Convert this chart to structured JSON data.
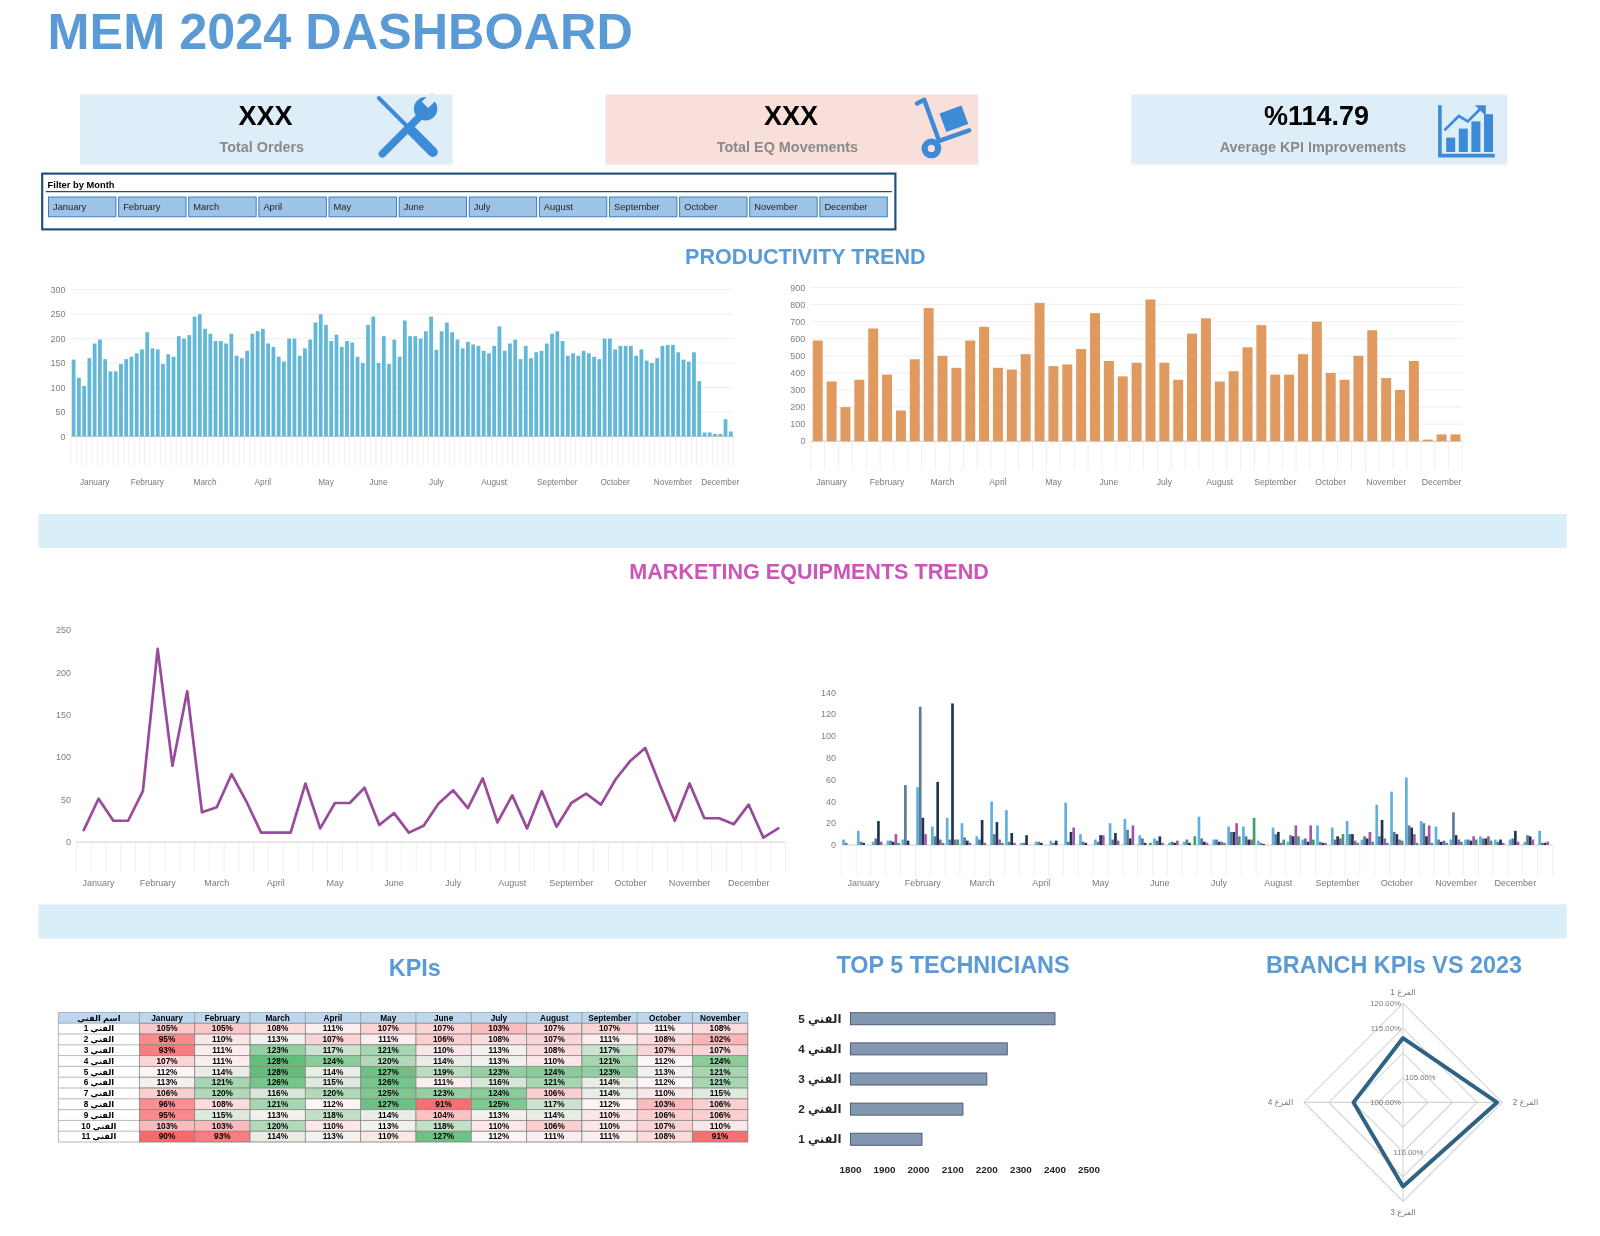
{
  "chart_data": [
    {
      "type": "other",
      "title": "MEM 2024 DASHBOARD",
      "annotations": [
        "XXX",
        "Total Orders",
        "XXX",
        "Total EQ Movements",
        "%114.79",
        "Average KPI Improvements",
        "Filter by Month",
        "January",
        "February",
        "March",
        "April",
        "May",
        "June",
        "July",
        "August",
        "September",
        "October",
        "November",
        "December"
      ]
    },
    {
      "type": "bar",
      "title": "PRODUCTIVITY TREND",
      "categories": [
        null,
        null,
        null,
        null,
        "January",
        null,
        null,
        null,
        null,
        null,
        null,
        null,
        null,
        null,
        "February",
        null,
        null,
        null,
        null,
        null,
        null,
        null,
        null,
        null,
        null,
        "March",
        null,
        null,
        null,
        null,
        null,
        null,
        null,
        null,
        null,
        null,
        "April",
        null,
        null,
        null,
        null,
        null,
        null,
        null,
        null,
        null,
        null,
        null,
        "May",
        null,
        null,
        null,
        null,
        null,
        null,
        null,
        null,
        null,
        "June",
        null,
        null,
        null,
        null,
        null,
        null,
        null,
        null,
        null,
        null,
        "July",
        null,
        null,
        null,
        null,
        null,
        null,
        null,
        null,
        null,
        null,
        "August",
        null,
        null,
        null,
        null,
        null,
        null,
        null,
        null,
        null,
        null,
        null,
        "September",
        null,
        null,
        null,
        null,
        null,
        null,
        null,
        null,
        null,
        null,
        "October",
        null,
        null,
        null,
        null,
        null,
        null,
        null,
        null,
        null,
        null,
        "November",
        null,
        null,
        null,
        null,
        null,
        null,
        null,
        null,
        "December",
        null,
        null
      ],
      "values": [
        157,
        120,
        103,
        160,
        190,
        198,
        158,
        133,
        133,
        148,
        158,
        163,
        170,
        178,
        213,
        180,
        178,
        148,
        168,
        163,
        205,
        200,
        207,
        245,
        250,
        220,
        210,
        195,
        195,
        190,
        210,
        165,
        160,
        175,
        210,
        215,
        220,
        190,
        183,
        163,
        153,
        200,
        200,
        165,
        180,
        198,
        233,
        250,
        228,
        195,
        208,
        183,
        195,
        192,
        163,
        150,
        228,
        245,
        150,
        205,
        148,
        198,
        163,
        237,
        205,
        205,
        200,
        215,
        245,
        177,
        215,
        233,
        213,
        198,
        180,
        193,
        188,
        185,
        175,
        170,
        185,
        225,
        175,
        190,
        198,
        158,
        185,
        160,
        172,
        175,
        190,
        210,
        215,
        195,
        165,
        170,
        165,
        175,
        170,
        163,
        158,
        200,
        200,
        178,
        185,
        185,
        185,
        165,
        178,
        155,
        150,
        160,
        185,
        187,
        187,
        172,
        157,
        153,
        172,
        113,
        8,
        8,
        5,
        5,
        35,
        10
      ],
      "color": "#62b8d6",
      "ylim": [
        0,
        300
      ],
      "yticks": [
        0,
        50,
        100,
        150,
        200,
        250,
        300
      ],
      "grid": "y"
    },
    {
      "type": "bar",
      "categories": [
        null,
        "January",
        null,
        null,
        null,
        "February",
        null,
        null,
        null,
        "March",
        null,
        null,
        null,
        "April",
        null,
        null,
        null,
        "May",
        null,
        null,
        null,
        "June",
        null,
        null,
        null,
        "July",
        null,
        null,
        null,
        "August",
        null,
        null,
        null,
        "September",
        null,
        null,
        null,
        "October",
        null,
        null,
        null,
        "November",
        null,
        null,
        null,
        "December",
        null
      ],
      "values": [
        590,
        350,
        200,
        360,
        660,
        390,
        180,
        480,
        780,
        500,
        430,
        590,
        670,
        430,
        420,
        510,
        810,
        440,
        450,
        540,
        750,
        470,
        380,
        460,
        830,
        460,
        360,
        630,
        720,
        350,
        410,
        550,
        680,
        390,
        390,
        510,
        700,
        400,
        360,
        500,
        650,
        370,
        300,
        470,
        10,
        40,
        40
      ],
      "color": "#e09a60",
      "ylim": [
        0,
        900
      ],
      "yticks": [
        0,
        100,
        200,
        300,
        400,
        500,
        600,
        700,
        800,
        900
      ],
      "grid": "y"
    },
    {
      "type": "line",
      "title": "MARKETING EQUIPMENTS TREND",
      "categories": [
        null,
        "January",
        null,
        null,
        null,
        "February",
        null,
        null,
        null,
        "March",
        null,
        null,
        null,
        "April",
        null,
        null,
        null,
        "May",
        null,
        null,
        null,
        "June",
        null,
        null,
        null,
        "July",
        null,
        null,
        null,
        "August",
        null,
        null,
        null,
        "September",
        null,
        null,
        null,
        "October",
        null,
        null,
        null,
        "November",
        null,
        null,
        null,
        "December",
        null,
        null
      ],
      "values": [
        14,
        51,
        25,
        25,
        60,
        228,
        90,
        178,
        35,
        41,
        80,
        48,
        11,
        11,
        11,
        69,
        16,
        46,
        46,
        64,
        20,
        34,
        11,
        19,
        45,
        61,
        40,
        75,
        23,
        55,
        16,
        60,
        18,
        46,
        57,
        44,
        74,
        96,
        111,
        67,
        25,
        69,
        28,
        28,
        21,
        44,
        5,
        16
      ],
      "color": "#9a4a9a",
      "ylim": [
        0,
        250
      ],
      "yticks": [
        0,
        50,
        100,
        150,
        200,
        250
      ]
    },
    {
      "type": "bar",
      "categories": [
        null,
        "January",
        null,
        null,
        null,
        "February",
        null,
        null,
        null,
        "March",
        null,
        null,
        null,
        "April",
        null,
        null,
        null,
        "May",
        null,
        null,
        null,
        "June",
        null,
        null,
        null,
        "July",
        null,
        null,
        null,
        "August",
        null,
        null,
        null,
        "September",
        null,
        null,
        null,
        "October",
        null,
        null,
        null,
        "November",
        null,
        null,
        null,
        "December",
        null,
        null
      ],
      "series": [
        {
          "color": "#5fb0dd",
          "values": [
            5,
            13,
            3,
            4,
            5,
            53,
            17,
            25,
            20,
            8,
            40,
            32,
            2,
            3,
            4,
            39,
            10,
            5,
            20,
            24,
            9,
            6,
            2,
            3,
            26,
            5,
            17,
            17,
            4,
            16,
            3,
            5,
            18,
            16,
            22,
            5,
            37,
            49,
            62,
            22,
            17,
            5,
            5,
            8,
            5,
            5,
            3,
            13
          ]
        },
        {
          "color": "#5b7a96",
          "values": [
            2,
            3,
            6,
            4,
            55,
            127,
            8,
            5,
            7,
            5,
            10,
            3,
            2,
            3,
            2,
            3,
            3,
            3,
            5,
            14,
            6,
            4,
            3,
            5,
            6,
            5,
            12,
            8,
            2,
            10,
            9,
            6,
            3,
            5,
            10,
            8,
            8,
            12,
            18,
            20,
            5,
            30,
            5,
            6,
            3,
            6,
            9,
            2
          ]
        },
        {
          "color": "#1e3553",
          "values": [
            null,
            2,
            22,
            3,
            4,
            25,
            58,
            130,
            4,
            23,
            21,
            11,
            9,
            2,
            4,
            12,
            2,
            9,
            11,
            6,
            2,
            8,
            2,
            2,
            3,
            3,
            12,
            5,
            1,
            12,
            8,
            3,
            2,
            8,
            10,
            6,
            23,
            10,
            16,
            8,
            3,
            9,
            4,
            6,
            5,
            13,
            8,
            2
          ]
        },
        {
          "color": "#9c5ba8",
          "values": [
            null,
            null,
            3,
            10,
            null,
            10,
            5,
            5,
            2,
            2,
            5,
            2,
            null,
            null,
            null,
            16,
            null,
            9,
            4,
            18,
            null,
            2,
            4,
            null,
            2,
            3,
            20,
            5,
            null,
            2,
            18,
            18,
            2,
            6,
            4,
            12,
            6,
            5,
            10,
            18,
            4,
            5,
            8,
            8,
            2,
            3,
            5,
            3
          ]
        },
        {
          "color": "#3f9f6a",
          "values": [
            null,
            null,
            null,
            2,
            null,
            null,
            2,
            5,
            null,
            null,
            2,
            null,
            null,
            null,
            null,
            null,
            null,
            null,
            null,
            null,
            2,
            null,
            null,
            8,
            null,
            2,
            8,
            25,
            null,
            5,
            8,
            5,
            null,
            10,
            2,
            3,
            2,
            4,
            2,
            2,
            2,
            3,
            5,
            4,
            null,
            null,
            null,
            null
          ]
        }
      ],
      "ylim": [
        0,
        140
      ],
      "yticks": [
        0,
        20,
        40,
        60,
        80,
        100,
        120,
        140
      ]
    },
    {
      "type": "heatmap",
      "title": "KPIs",
      "ylabel": "اسم الفني",
      "categories": [
        "January",
        "February",
        "March",
        "April",
        "May",
        "June",
        "July",
        "August",
        "September",
        "October",
        "November"
      ],
      "y_categories": [
        "الفني 1",
        "الفني 2",
        "الفني 3",
        "الفني 4",
        "الفني 5",
        "الفني 6",
        "الفني 7",
        "الفني 8",
        "الفني 9",
        "الفني 10",
        "الفني 11"
      ],
      "cells": [
        [
          105,
          105,
          108,
          111,
          107,
          107,
          103,
          107,
          107,
          111,
          108
        ],
        [
          95,
          110,
          113,
          107,
          111,
          106,
          108,
          107,
          111,
          108,
          102
        ],
        [
          93,
          111,
          123,
          117,
          121,
          110,
          113,
          108,
          117,
          107,
          107
        ],
        [
          107,
          111,
          128,
          124,
          120,
          114,
          113,
          110,
          121,
          112,
          124
        ],
        [
          112,
          114,
          128,
          114,
          127,
          119,
          123,
          124,
          123,
          113,
          121
        ],
        [
          113,
          121,
          126,
          115,
          126,
          111,
          116,
          121,
          114,
          112,
          121
        ],
        [
          106,
          120,
          116,
          120,
          125,
          123,
          124,
          106,
          114,
          110,
          115
        ],
        [
          96,
          108,
          121,
          112,
          127,
          91,
          125,
          117,
          112,
          103,
          106
        ],
        [
          95,
          115,
          113,
          118,
          114,
          104,
          113,
          114,
          110,
          106,
          106
        ],
        [
          103,
          103,
          120,
          110,
          113,
          118,
          110,
          106,
          110,
          107,
          110
        ],
        [
          90,
          93,
          114,
          113,
          110,
          127,
          112,
          111,
          111,
          108,
          91
        ]
      ],
      "cell_labels": [
        [
          "105%",
          "105%",
          "108%",
          "111%",
          "107%",
          "107%",
          "103%",
          "107%",
          "107%",
          "111%",
          "108%"
        ],
        [
          "95%",
          "110%",
          "113%",
          "107%",
          "111%",
          "106%",
          "108%",
          "107%",
          "111%",
          "108%",
          "102%"
        ],
        [
          "93%",
          "111%",
          "123%",
          "117%",
          "121%",
          "110%",
          "113%",
          "108%",
          "117%",
          "107%",
          "107%"
        ],
        [
          "107%",
          "111%",
          "128%",
          "124%",
          "120%",
          "114%",
          "113%",
          "110%",
          "121%",
          "112%",
          "124%"
        ],
        [
          "112%",
          "114%",
          "128%",
          "114%",
          "127%",
          "119%",
          "123%",
          "124%",
          "123%",
          "113%",
          "121%"
        ],
        [
          "113%",
          "121%",
          "126%",
          "115%",
          "126%",
          "111%",
          "116%",
          "121%",
          "114%",
          "112%",
          "121%"
        ],
        [
          "106%",
          "120%",
          "116%",
          "120%",
          "125%",
          "123%",
          "124%",
          "106%",
          "114%",
          "110%",
          "115%"
        ],
        [
          "96%",
          "108%",
          "121%",
          "112%",
          "127%",
          "91%",
          "125%",
          "117%",
          "112%",
          "103%",
          "106%"
        ],
        [
          "95%",
          "115%",
          "113%",
          "118%",
          "114%",
          "104%",
          "113%",
          "114%",
          "110%",
          "106%",
          "106%"
        ],
        [
          "103%",
          "103%",
          "120%",
          "110%",
          "113%",
          "118%",
          "110%",
          "106%",
          "110%",
          "107%",
          "110%"
        ],
        [
          "90%",
          "93%",
          "114%",
          "113%",
          "110%",
          "127%",
          "112%",
          "111%",
          "111%",
          "108%",
          "91%"
        ]
      ]
    },
    {
      "type": "bar",
      "title": "TOP 5 TECHNICIANS",
      "orientation": "horizontal",
      "categories": [
        "الفني 5",
        "الفني 4",
        "الفني 3",
        "الفني 2",
        "الفني 1"
      ],
      "values": [
        2400,
        2260,
        2200,
        2130,
        2010
      ],
      "color": "#8497b0",
      "xlim": [
        1800,
        2500
      ],
      "xticks": [
        1800,
        1900,
        2000,
        2100,
        2200,
        2300,
        2400,
        2500
      ]
    },
    {
      "type": "radar",
      "title": "BRANCH KPIs VS 2023",
      "categories": [
        "الفرع 1",
        "الفرع 2",
        "الفرع 3",
        "الفرع 4"
      ],
      "series": [
        {
          "color": "#2f6283",
          "values": [
            113,
            119,
            117,
            110
          ]
        }
      ],
      "ylim": [
        100,
        120
      ],
      "yticks": [
        {
          "value": 100,
          "label": "100.00%"
        },
        {
          "value": 105,
          "label": "105.00%"
        },
        {
          "value": 110,
          "label": "110.00%"
        },
        {
          "value": 115,
          "label": "115.00%"
        },
        {
          "value": 120,
          "label": "120.00%"
        }
      ],
      "grid": true
    }
  ]
}
